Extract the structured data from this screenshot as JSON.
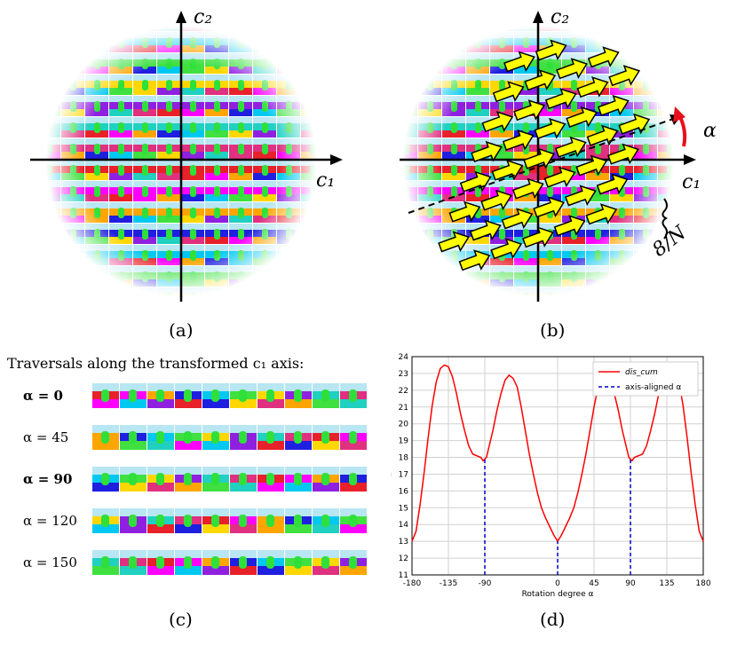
{
  "panel_a": {
    "axis_x_label": "c₁",
    "axis_y_label": "c₂",
    "caption": "(a)"
  },
  "panel_b": {
    "axis_x_label": "c₁",
    "axis_y_label": "c₂",
    "alpha_label": "α",
    "spacing_label": "8/N",
    "caption": "(b)"
  },
  "panel_c": {
    "title": "Traversals along the transformed c₁ axis:",
    "rows": [
      {
        "label": "α = 0",
        "bold": true
      },
      {
        "label": "α = 45",
        "bold": false
      },
      {
        "label": "α = 90",
        "bold": true
      },
      {
        "label": "α = 120",
        "bold": false
      },
      {
        "label": "α = 150",
        "bold": false
      }
    ],
    "caption": "(c)"
  },
  "panel_d": {
    "caption": "(d)"
  },
  "colors": {
    "palette": [
      "#e8202a",
      "#ff00ff",
      "#ffa500",
      "#1f1fe0",
      "#00c8f0",
      "#40e040",
      "#ffd700",
      "#9020e0",
      "#20d0c0",
      "#e03080"
    ],
    "curve": "#ff0000",
    "vline": "#0000cc"
  },
  "chart_data": {
    "type": "line",
    "xlabel": "Rotation degree α",
    "ylabel": "dis_cum(α)",
    "xlim": [
      -180,
      180
    ],
    "ylim": [
      11,
      24
    ],
    "xticks": [
      -180,
      -135,
      -90,
      0,
      45,
      90,
      135,
      180
    ],
    "yticks": [
      11,
      12,
      13,
      14,
      15,
      16,
      17,
      18,
      19,
      20,
      21,
      22,
      23,
      24
    ],
    "grid": true,
    "legend_position": "top-right",
    "series": [
      {
        "name": "dis_cum",
        "x": [
          -180,
          -175,
          -170,
          -165,
          -160,
          -155,
          -150,
          -145,
          -140,
          -135,
          -130,
          -125,
          -120,
          -115,
          -110,
          -105,
          -100,
          -95,
          -92,
          -90,
          -88,
          -85,
          -80,
          -75,
          -70,
          -65,
          -60,
          -55,
          -50,
          -45,
          -40,
          -35,
          -30,
          -25,
          -20,
          -15,
          -10,
          -5,
          0,
          5,
          10,
          15,
          20,
          25,
          30,
          35,
          40,
          45,
          50,
          55,
          60,
          65,
          70,
          75,
          80,
          85,
          88,
          90,
          92,
          95,
          100,
          105,
          110,
          115,
          120,
          125,
          130,
          135,
          140,
          145,
          150,
          155,
          160,
          165,
          170,
          175,
          180
        ],
        "y": [
          13.0,
          13.6,
          15.2,
          17.1,
          19.2,
          21.1,
          22.5,
          23.3,
          23.5,
          23.4,
          22.8,
          21.8,
          20.6,
          19.6,
          18.7,
          18.2,
          18.1,
          18.0,
          17.8,
          17.9,
          18.0,
          18.6,
          19.6,
          20.8,
          21.8,
          22.6,
          22.9,
          22.7,
          22.2,
          21.0,
          19.6,
          18.2,
          17.0,
          15.9,
          15.0,
          14.4,
          13.9,
          13.4,
          13.0,
          13.4,
          13.9,
          14.4,
          15.0,
          15.9,
          17.0,
          18.2,
          19.6,
          21.0,
          22.2,
          22.7,
          22.9,
          22.6,
          21.8,
          20.8,
          19.6,
          18.6,
          18.0,
          17.9,
          17.8,
          18.0,
          18.1,
          18.2,
          18.7,
          19.6,
          20.6,
          21.8,
          22.8,
          23.4,
          23.5,
          23.3,
          22.5,
          21.1,
          19.2,
          17.1,
          15.2,
          13.6,
          13.0
        ]
      },
      {
        "name": "axis-aligned α",
        "x": [
          -90,
          0,
          90
        ],
        "y": [
          17.9,
          13.0,
          17.9
        ]
      }
    ],
    "legend": [
      "dis_cum",
      "axis-aligned α"
    ]
  }
}
